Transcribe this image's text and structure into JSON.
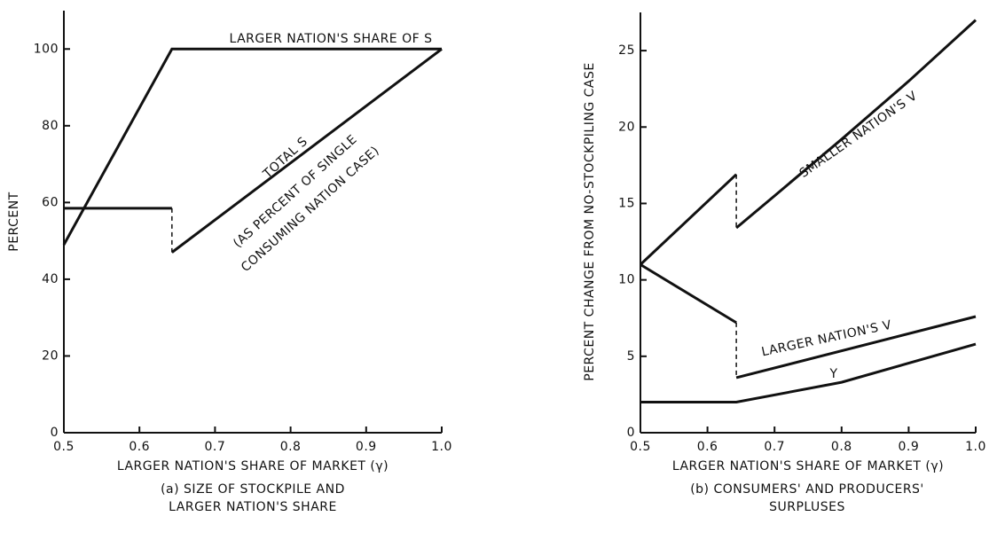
{
  "chart_data": [
    {
      "type": "line",
      "caption": [
        "(a) SIZE OF STOCKPILE AND",
        "LARGER NATION'S SHARE"
      ],
      "xlabel": "LARGER NATION'S SHARE OF MARKET (γ)",
      "ylabel": "PERCENT",
      "xlim": [
        0.5,
        1
      ],
      "xticks": [
        0.5,
        0.6,
        0.7,
        0.8,
        0.9,
        {
          "value": 1,
          "label": "1.0"
        }
      ],
      "ylim": [
        0,
        110
      ],
      "yticks": [
        0,
        20,
        40,
        60,
        80,
        100
      ],
      "series": [
        {
          "name": "LARGER NATION'S SHARE OF S",
          "color": "#111111",
          "x": [
            0.5,
            0.643,
            1
          ],
          "values": [
            49,
            100,
            100
          ]
        },
        {
          "name": "TOTAL S",
          "color": "#111111",
          "x": [
            0.5,
            0.643,
            0.643,
            0.643,
            1
          ],
          "values": [
            58.5,
            58.5,
            null,
            47,
            100
          ]
        }
      ],
      "annotations": [
        "(AS PERCENT OF SINGLE",
        "CONSUMING NATION CASE)"
      ]
    },
    {
      "type": "line",
      "caption": [
        "(b) CONSUMERS' AND PRODUCERS'",
        "SURPLUSES"
      ],
      "xlabel": "LARGER NATION'S SHARE OF MARKET (γ)",
      "ylabel": "PERCENT CHANGE FROM NO-STOCKPILING CASE",
      "xlim": [
        0.5,
        1
      ],
      "xticks": [
        0.5,
        0.6,
        0.7,
        0.8,
        0.9,
        {
          "value": 1,
          "label": "1.0"
        }
      ],
      "ylim": [
        0,
        27.5
      ],
      "yticks": [
        0,
        5,
        10,
        15,
        20,
        25
      ],
      "series": [
        {
          "name": "SMALLER NATION'S V",
          "color": "#111111",
          "x": [
            0.5,
            0.643,
            0.643,
            0.643,
            0.7,
            0.8,
            0.9,
            1
          ],
          "values": [
            11,
            16.9,
            null,
            13.4,
            15.5,
            19.2,
            23,
            27
          ]
        },
        {
          "name": "LARGER NATION'S V",
          "color": "#111111",
          "x": [
            0.5,
            0.643,
            0.643,
            0.643,
            1
          ],
          "values": [
            11,
            7.2,
            null,
            3.6,
            7.6
          ]
        },
        {
          "name": "Y",
          "color": "#111111",
          "x": [
            0.5,
            0.643,
            0.8,
            1
          ],
          "values": [
            2,
            2,
            3.3,
            5.8
          ]
        }
      ]
    }
  ]
}
